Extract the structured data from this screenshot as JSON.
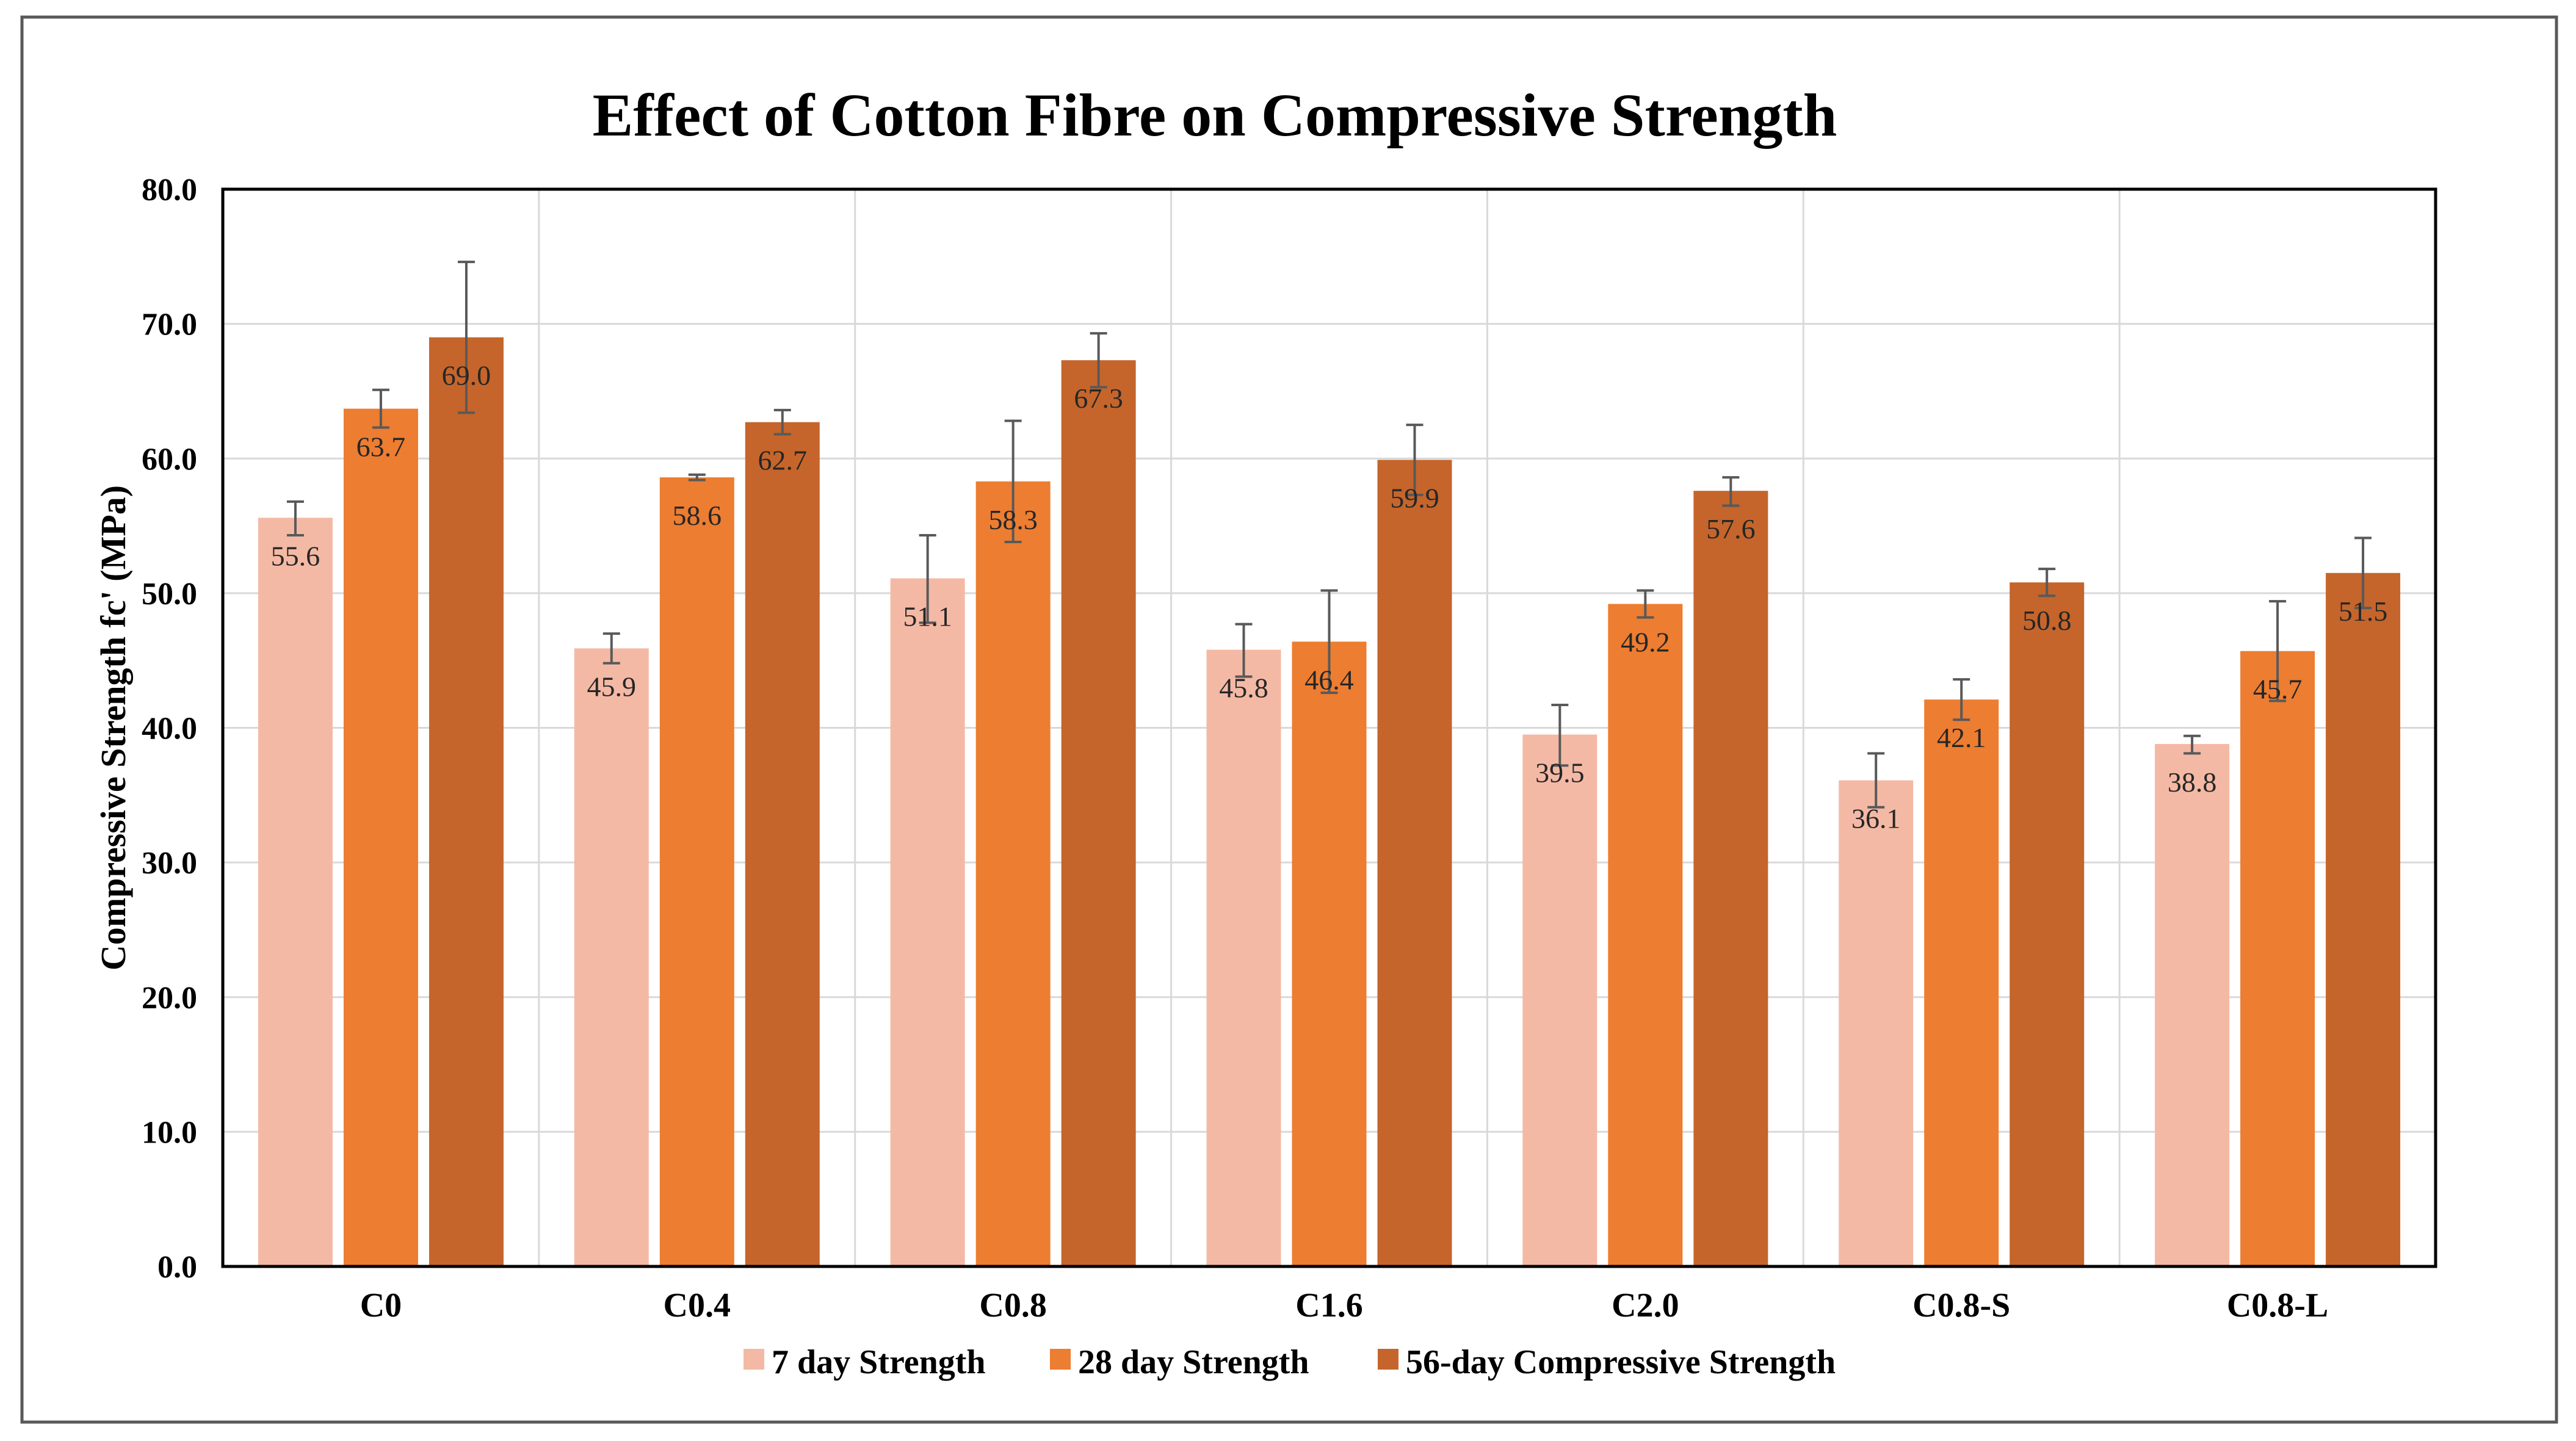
{
  "chart_data": {
    "type": "bar",
    "title": "Effect of Cotton Fibre on Compressive Strength",
    "xlabel": "",
    "ylabel": "Compressive Strength fc' (MPa)",
    "ylim": [
      0,
      80
    ],
    "yticks": [
      0,
      10,
      20,
      30,
      40,
      50,
      60,
      70,
      80
    ],
    "ytick_labels": [
      "0.0",
      "10.0",
      "20.0",
      "30.0",
      "40.0",
      "50.0",
      "60.0",
      "70.0",
      "80.0"
    ],
    "grid": true,
    "legend_position": "bottom",
    "categories": [
      "C0",
      "C0.4",
      "C0.8",
      "C1.6",
      "C2.0",
      "C0.8-S",
      "C0.8-L"
    ],
    "series": [
      {
        "name": "7 day Strength",
        "color": "#F4B9A5",
        "values": [
          55.6,
          45.9,
          51.1,
          45.8,
          39.5,
          36.1,
          38.8
        ],
        "labels": [
          "55.6",
          "45.9",
          "51.1",
          "45.8",
          "39.5",
          "36.1",
          "38.8"
        ],
        "error_low": [
          54.3,
          44.8,
          47.8,
          43.8,
          37.2,
          34.1,
          38.1
        ],
        "error_high": [
          56.8,
          47.0,
          54.3,
          47.7,
          41.7,
          38.1,
          39.4
        ]
      },
      {
        "name": "28 day Strength",
        "color": "#ED7D31",
        "values": [
          63.7,
          58.6,
          58.3,
          46.4,
          49.2,
          42.1,
          45.7
        ],
        "labels": [
          "63.7",
          "58.6",
          "58.3",
          "46.4",
          "49.2",
          "42.1",
          "45.7"
        ],
        "error_low": [
          62.3,
          58.4,
          53.8,
          42.6,
          48.2,
          40.6,
          42.0
        ],
        "error_high": [
          65.1,
          58.8,
          62.8,
          50.2,
          50.2,
          43.6,
          49.4
        ]
      },
      {
        "name": "56-day Compressive Strength",
        "color": "#C5652B",
        "values": [
          69.0,
          62.7,
          67.3,
          59.9,
          57.6,
          50.8,
          51.5
        ],
        "labels": [
          "69.0",
          "62.7",
          "67.3",
          "59.9",
          "57.6",
          "50.8",
          "51.5"
        ],
        "error_low": [
          63.4,
          61.8,
          65.3,
          57.3,
          56.5,
          49.8,
          48.9
        ],
        "error_high": [
          74.6,
          63.6,
          69.3,
          62.5,
          58.6,
          51.8,
          54.1
        ]
      }
    ]
  }
}
